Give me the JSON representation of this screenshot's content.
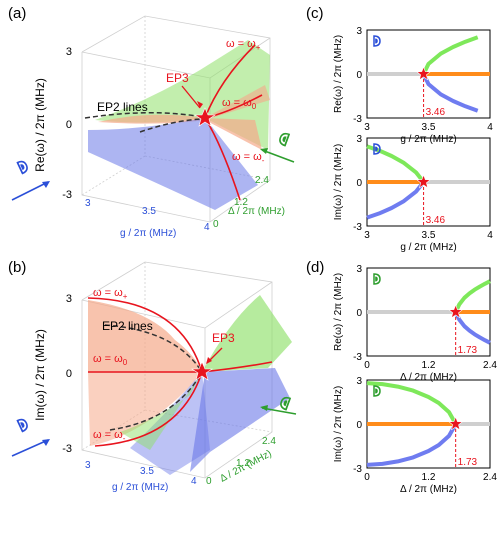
{
  "colors": {
    "green": "#7ee85a",
    "green_fill": "#8fe06a",
    "orange": "#ff8c1a",
    "orange_fill": "#f5a98a",
    "blue": "#6f7cf0",
    "blue_fill": "#6a78e8",
    "gray": "#cfcfcf",
    "red": "#e8141e",
    "axis_g": "#2b4fd8",
    "axis_delta": "#2e9e2e",
    "dashed": "#444444"
  },
  "icons": {
    "blue_eye": "eye-icon-blue",
    "green_eye": "eye-icon-green"
  },
  "panel_a": {
    "label": "(a)",
    "ylabel": "Re(ω) / 2π (MHz)",
    "z_ticks": [
      "3",
      "0",
      "-3"
    ],
    "g_label": "g / 2π (MHz)",
    "g_ticks": [
      "3",
      "3.5",
      "4"
    ],
    "delta_label": "Δ / 2π (MHz)",
    "delta_ticks": [
      "0",
      "1.2",
      "2.4"
    ],
    "curve_plus": "ω = ω",
    "curve_plus_sub": "+",
    "curve_zero": "ω = ω",
    "curve_zero_sub": "0",
    "curve_minus": "ω = ω",
    "curve_minus_sub": "-",
    "ep3": "EP3",
    "ep2": "EP2 lines"
  },
  "panel_b": {
    "label": "(b)",
    "ylabel": "Im(ω) / 2π (MHz)",
    "z_ticks": [
      "3",
      "0",
      "-3"
    ],
    "g_label": "g / 2π (MHz)",
    "g_ticks": [
      "3",
      "3.5",
      "4"
    ],
    "delta_label": "Δ / 2π (MHz)",
    "delta_ticks": [
      "0",
      "1.2",
      "2.4"
    ],
    "curve_plus": "ω = ω",
    "curve_plus_sub": "+",
    "curve_zero": "ω = ω",
    "curve_zero_sub": "0",
    "curve_minus": "ω = ω",
    "curve_minus_sub": "-",
    "ep3": "EP3",
    "ep2": "EP2 lines"
  },
  "panel_c": {
    "label": "(c)"
  },
  "panel_d": {
    "label": "(d)"
  },
  "chart_data": [
    {
      "id": "c_top",
      "type": "line",
      "xlabel": "g / 2π (MHz)",
      "ylabel": "Re(ω) / 2π (MHz)",
      "xlim": [
        3,
        4
      ],
      "ylim": [
        -3,
        3
      ],
      "xticks": [
        "3",
        "3.5",
        "4"
      ],
      "yticks": [
        "3",
        "0",
        "-3"
      ],
      "annotation": "3.46",
      "ep_x": 3.46,
      "series": [
        {
          "color": "gray",
          "x": [
            3,
            3.46
          ],
          "y": [
            0,
            0
          ]
        },
        {
          "color": "green",
          "x": [
            3.46,
            3.5,
            3.6,
            3.7,
            3.8,
            3.9
          ],
          "y": [
            0,
            0.69,
            1.39,
            1.84,
            2.2,
            2.51
          ]
        },
        {
          "color": "orange",
          "x": [
            3.46,
            4
          ],
          "y": [
            0,
            0
          ]
        },
        {
          "color": "blue",
          "x": [
            3.46,
            3.5,
            3.6,
            3.7,
            3.8,
            3.9
          ],
          "y": [
            0,
            -0.69,
            -1.39,
            -1.84,
            -2.2,
            -2.51
          ]
        }
      ]
    },
    {
      "id": "c_bottom",
      "type": "line",
      "xlabel": "g / 2π (MHz)",
      "ylabel": "Im(ω) / 2π (MHz)",
      "xlim": [
        3,
        4
      ],
      "ylim": [
        -3,
        3
      ],
      "xticks": [
        "3",
        "3.5",
        "4"
      ],
      "yticks": [
        "3",
        "0",
        "-3"
      ],
      "annotation": "3.46",
      "ep_x": 3.46,
      "series": [
        {
          "color": "orange",
          "x": [
            3,
            3.46
          ],
          "y": [
            0,
            0
          ]
        },
        {
          "color": "green",
          "x": [
            3,
            3.1,
            3.2,
            3.3,
            3.4,
            3.46
          ],
          "y": [
            2.43,
            2.14,
            1.77,
            1.3,
            0.64,
            0
          ]
        },
        {
          "color": "blue",
          "x": [
            3,
            3.1,
            3.2,
            3.3,
            3.4,
            3.46
          ],
          "y": [
            -2.43,
            -2.14,
            -1.77,
            -1.3,
            -0.64,
            0
          ]
        },
        {
          "color": "gray",
          "x": [
            3.46,
            4
          ],
          "y": [
            0,
            0
          ]
        }
      ]
    },
    {
      "id": "d_top",
      "type": "line",
      "xlabel": "Δ / 2π (MHz)",
      "ylabel": "Re(ω) / 2π (MHz)",
      "xlim": [
        0,
        2.4
      ],
      "ylim": [
        -3,
        3
      ],
      "xticks": [
        "0",
        "1.2",
        "2.4"
      ],
      "yticks": [
        "3",
        "0",
        "-3"
      ],
      "annotation": "1.73",
      "ep_x": 1.73,
      "series": [
        {
          "color": "gray",
          "x": [
            0,
            1.73
          ],
          "y": [
            0,
            0
          ]
        },
        {
          "color": "green",
          "x": [
            1.73,
            1.8,
            1.9,
            2.0,
            2.1,
            2.2,
            2.3,
            2.4
          ],
          "y": [
            0,
            0.52,
            0.97,
            1.27,
            1.52,
            1.73,
            1.92,
            2.1
          ]
        },
        {
          "color": "orange",
          "x": [
            1.73,
            2.4
          ],
          "y": [
            0,
            0
          ]
        },
        {
          "color": "blue",
          "x": [
            1.73,
            1.8,
            1.9,
            2.0,
            2.1,
            2.2,
            2.3,
            2.4
          ],
          "y": [
            0,
            -0.52,
            -0.97,
            -1.27,
            -1.52,
            -1.73,
            -1.92,
            -2.1
          ]
        }
      ]
    },
    {
      "id": "d_bottom",
      "type": "line",
      "xlabel": "Δ / 2π (MHz)",
      "ylabel": "Im(ω) / 2π (MHz)",
      "xlim": [
        0,
        2.4
      ],
      "ylim": [
        -3,
        3
      ],
      "xticks": [
        "0",
        "1.2",
        "2.4"
      ],
      "yticks": [
        "3",
        "0",
        "-3"
      ],
      "annotation": "1.73",
      "ep_x": 1.73,
      "series": [
        {
          "color": "orange",
          "x": [
            0,
            1.73
          ],
          "y": [
            0,
            0
          ]
        },
        {
          "color": "green",
          "x": [
            0,
            0.3,
            0.6,
            0.9,
            1.2,
            1.4,
            1.6,
            1.73
          ],
          "y": [
            2.79,
            2.72,
            2.55,
            2.28,
            1.84,
            1.43,
            0.81,
            0
          ]
        },
        {
          "color": "blue",
          "x": [
            0,
            0.3,
            0.6,
            0.9,
            1.2,
            1.4,
            1.6,
            1.73
          ],
          "y": [
            -2.79,
            -2.72,
            -2.55,
            -2.28,
            -1.84,
            -1.43,
            -0.81,
            0
          ]
        },
        {
          "color": "gray",
          "x": [
            1.73,
            2.4
          ],
          "y": [
            0,
            0
          ]
        }
      ]
    }
  ]
}
